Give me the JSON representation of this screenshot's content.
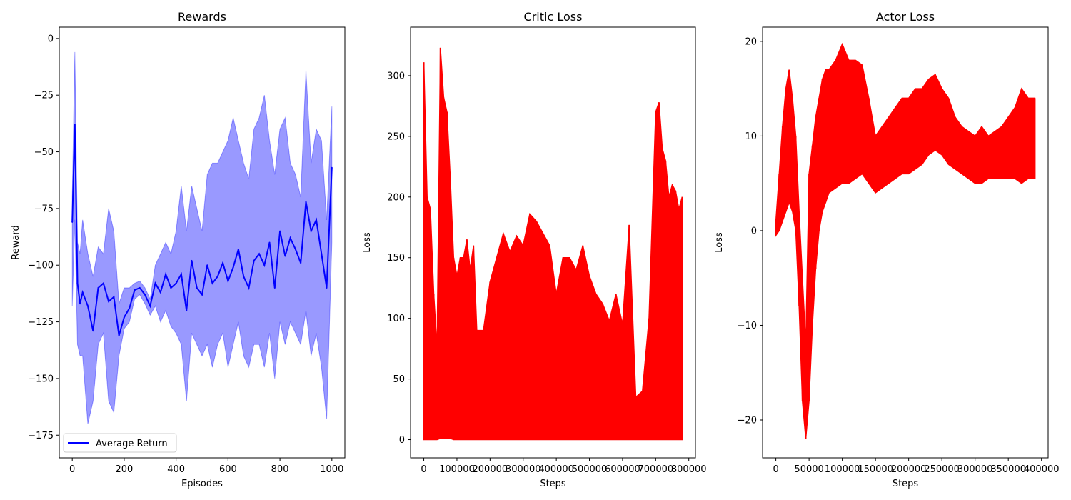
{
  "chart_data": [
    {
      "type": "line",
      "title": "Rewards",
      "xlabel": "Episodes",
      "ylabel": "Reward",
      "xlim": [
        -50,
        1050
      ],
      "ylim": [
        -185,
        5
      ],
      "xticks": [
        0,
        200,
        400,
        600,
        800,
        1000
      ],
      "yticks": [
        0,
        -25,
        -50,
        -75,
        -100,
        -125,
        -150,
        -175
      ],
      "legend_position": "lower-left",
      "grid": false,
      "series": [
        {
          "name": "Average Return",
          "color": "#0000ff",
          "band_color": "#0000ff",
          "band_opacity": 0.4,
          "x": [
            0,
            10,
            20,
            30,
            40,
            60,
            80,
            100,
            120,
            140,
            160,
            180,
            200,
            220,
            240,
            260,
            280,
            300,
            320,
            340,
            360,
            380,
            400,
            420,
            440,
            460,
            480,
            500,
            520,
            540,
            560,
            580,
            600,
            620,
            640,
            660,
            680,
            700,
            720,
            740,
            760,
            780,
            800,
            820,
            840,
            860,
            880,
            900,
            920,
            940,
            960,
            980,
            1000
          ],
          "mean": [
            -81,
            -38,
            -108,
            -117,
            -112,
            -118,
            -129,
            -110,
            -108,
            -116,
            -114,
            -131,
            -123,
            -119,
            -111,
            -110,
            -113,
            -118,
            -108,
            -112,
            -104,
            -110,
            -108,
            -104,
            -120,
            -98,
            -110,
            -113,
            -100,
            -108,
            -105,
            -99,
            -107,
            -101,
            -93,
            -105,
            -110,
            -98,
            -95,
            -100,
            -90,
            -110,
            -85,
            -96,
            -88,
            -93,
            -99,
            -72,
            -85,
            -80,
            -95,
            -110,
            -57
          ],
          "upper": [
            -70,
            -6,
            -90,
            -95,
            -80,
            -95,
            -105,
            -92,
            -95,
            -75,
            -85,
            -117,
            -110,
            -110,
            -108,
            -107,
            -110,
            -115,
            -100,
            -95,
            -90,
            -95,
            -85,
            -65,
            -85,
            -65,
            -75,
            -85,
            -60,
            -55,
            -55,
            -50,
            -45,
            -35,
            -45,
            -55,
            -62,
            -40,
            -35,
            -25,
            -45,
            -60,
            -40,
            -35,
            -55,
            -60,
            -70,
            -14,
            -55,
            -40,
            -45,
            -80,
            -30
          ],
          "lower": [
            -118,
            -80,
            -135,
            -140,
            -140,
            -170,
            -160,
            -135,
            -130,
            -160,
            -165,
            -140,
            -128,
            -125,
            -115,
            -113,
            -117,
            -122,
            -118,
            -125,
            -120,
            -127,
            -130,
            -135,
            -160,
            -130,
            -135,
            -140,
            -135,
            -145,
            -135,
            -130,
            -145,
            -135,
            -125,
            -140,
            -145,
            -135,
            -135,
            -145,
            -130,
            -150,
            -125,
            -135,
            -125,
            -130,
            -135,
            -120,
            -140,
            -130,
            -145,
            -168,
            -90
          ]
        }
      ]
    },
    {
      "type": "line",
      "title": "Critic Loss",
      "xlabel": "Steps",
      "ylabel": "Loss",
      "xlim": [
        -40000,
        820000
      ],
      "ylim": [
        -15,
        340
      ],
      "xticks": [
        0,
        100000,
        200000,
        300000,
        400000,
        500000,
        600000,
        700000,
        800000
      ],
      "yticks": [
        0,
        50,
        100,
        150,
        200,
        250,
        300
      ],
      "grid": false,
      "series": [
        {
          "name": "",
          "color": "#ff0000",
          "x": [
            0,
            10000,
            20000,
            30000,
            40000,
            50000,
            60000,
            70000,
            80000,
            90000,
            100000,
            110000,
            120000,
            130000,
            140000,
            150000,
            160000,
            180000,
            200000,
            220000,
            240000,
            260000,
            280000,
            300000,
            320000,
            340000,
            360000,
            380000,
            400000,
            420000,
            440000,
            460000,
            480000,
            500000,
            520000,
            540000,
            560000,
            580000,
            600000,
            620000,
            640000,
            660000,
            680000,
            700000,
            710000,
            720000,
            730000,
            740000,
            750000,
            760000,
            770000,
            780000
          ],
          "envelope": [
            311,
            200,
            190,
            120,
            75,
            323,
            282,
            270,
            215,
            150,
            135,
            150,
            150,
            165,
            140,
            160,
            90,
            90,
            130,
            150,
            170,
            155,
            168,
            160,
            186,
            180,
            170,
            160,
            120,
            150,
            150,
            140,
            160,
            135,
            120,
            112,
            98,
            120,
            95,
            177,
            35,
            40,
            100,
            270,
            278,
            240,
            230,
            200,
            210,
            205,
            190,
            200
          ],
          "baseline": [
            0,
            0,
            0,
            0,
            0,
            1,
            1,
            1,
            1,
            0,
            0,
            0,
            0,
            0,
            0,
            0,
            0,
            0,
            0,
            0,
            0,
            0,
            0,
            0,
            0,
            0,
            0,
            0,
            0,
            0,
            0,
            0,
            0,
            0,
            0,
            0,
            0,
            0,
            0,
            0,
            0,
            0,
            0,
            0,
            0,
            0,
            0,
            0,
            0,
            0,
            0,
            0
          ]
        }
      ]
    },
    {
      "type": "line",
      "title": "Actor Loss",
      "xlabel": "Steps",
      "ylabel": "Loss",
      "xlim": [
        -20000,
        410000
      ],
      "ylim": [
        -24,
        21.5
      ],
      "xticks": [
        0,
        50000,
        100000,
        150000,
        200000,
        250000,
        300000,
        350000,
        400000
      ],
      "yticks": [
        20,
        10,
        0,
        -10,
        -20
      ],
      "grid": false,
      "series": [
        {
          "name": "",
          "color": "#ff0000",
          "x": [
            0,
            5000,
            10000,
            15000,
            20000,
            25000,
            30000,
            35000,
            40000,
            45000,
            50000,
            55000,
            60000,
            65000,
            70000,
            75000,
            80000,
            90000,
            100000,
            110000,
            120000,
            130000,
            140000,
            150000,
            160000,
            170000,
            180000,
            190000,
            200000,
            210000,
            220000,
            230000,
            240000,
            250000,
            260000,
            270000,
            280000,
            290000,
            300000,
            310000,
            320000,
            330000,
            340000,
            350000,
            360000,
            370000,
            380000,
            390000
          ],
          "upper": [
            1,
            6,
            11,
            15,
            17,
            14,
            10,
            2,
            -5,
            -12,
            6,
            9,
            12,
            14,
            16,
            17,
            17,
            18,
            19.7,
            18,
            18,
            17.5,
            14,
            10,
            11,
            12,
            13,
            14,
            14,
            15,
            15,
            16,
            16.5,
            15,
            14,
            12,
            11,
            10.5,
            10,
            11,
            10,
            10.5,
            11,
            12,
            13,
            15,
            14,
            14
          ],
          "lower": [
            -0.5,
            0,
            1,
            2,
            3,
            2,
            0,
            -8,
            -18,
            -22,
            -18,
            -10,
            -4,
            0,
            2,
            3,
            4,
            4.5,
            5,
            5,
            5.5,
            6,
            5,
            4,
            4.5,
            5,
            5.5,
            6,
            6,
            6.5,
            7,
            8,
            8.5,
            8,
            7,
            6.5,
            6,
            5.5,
            5,
            5,
            5.5,
            5.5,
            5.5,
            5.5,
            5.5,
            5,
            5.5,
            5.5
          ]
        }
      ]
    }
  ]
}
